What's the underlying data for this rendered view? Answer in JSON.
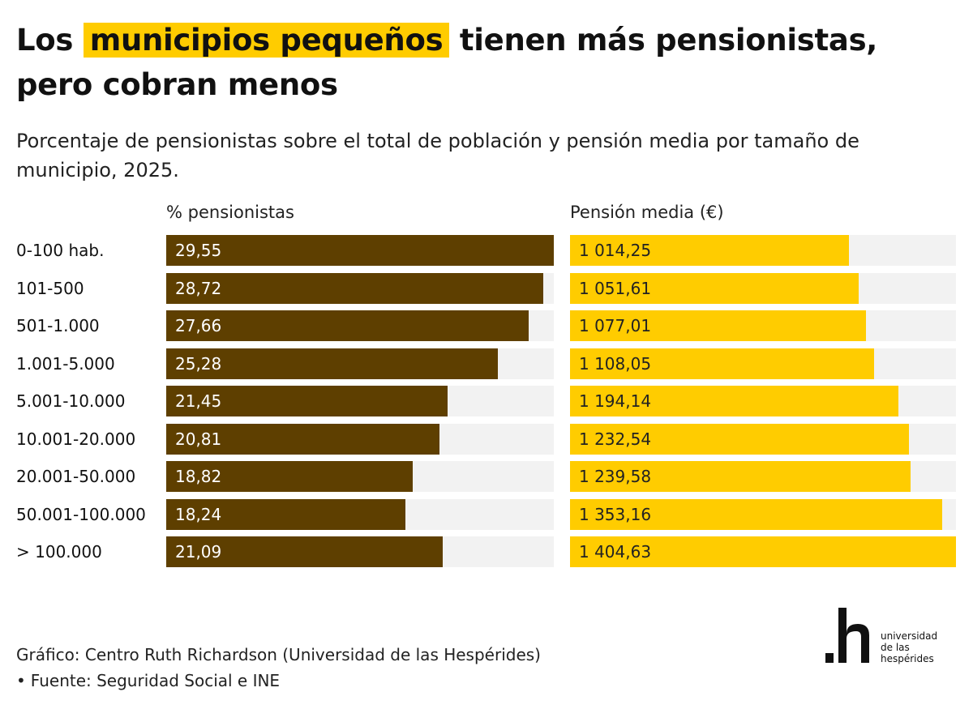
{
  "title": {
    "pre": "Los ",
    "highlight": "municipios pequeños",
    "post": " tienen más pensionistas, pero cobran menos"
  },
  "subtitle": "Porcentaje de pensionistas sobre el total de población y pensión media por tamaño de municipio, 2025.",
  "colors": {
    "brown": "#5e3f00",
    "yellow": "#ffcc00",
    "track": "#f2f2f2"
  },
  "chart_data": [
    {
      "type": "bar",
      "orientation": "horizontal",
      "title": "% pensionistas",
      "categories": [
        "0-100 hab.",
        "101-500",
        "501-1.000",
        "1.001-5.000",
        "5.001-10.000",
        "10.001-20.000",
        "20.001-50.000",
        "50.001-100.000",
        "> 100.000"
      ],
      "values": [
        29.55,
        28.72,
        27.66,
        25.28,
        21.45,
        20.81,
        18.82,
        18.24,
        21.09
      ],
      "value_labels": [
        "29,55",
        "28,72",
        "27,66",
        "25,28",
        "21,45",
        "20,81",
        "18,82",
        "18,24",
        "21,09"
      ],
      "xlim": [
        0,
        29.55
      ],
      "color": "#5e3f00",
      "grid": false
    },
    {
      "type": "bar",
      "orientation": "horizontal",
      "title": "Pensión media (€)",
      "categories": [
        "0-100 hab.",
        "101-500",
        "501-1.000",
        "1.001-5.000",
        "5.001-10.000",
        "10.001-20.000",
        "20.001-50.000",
        "50.001-100.000",
        "> 100.000"
      ],
      "values": [
        1014.25,
        1051.61,
        1077.01,
        1108.05,
        1194.14,
        1232.54,
        1239.58,
        1353.16,
        1404.63
      ],
      "value_labels": [
        "1 014,25",
        "1 051,61",
        "1 077,01",
        "1 108,05",
        "1 194,14",
        "1 232,54",
        "1 239,58",
        "1 353,16",
        "1 404,63"
      ],
      "xlim": [
        0,
        1404.63
      ],
      "color": "#ffcc00",
      "grid": false
    }
  ],
  "credit": {
    "line1": "Gráfico: Centro Ruth Richardson (Universidad de las Hespérides)",
    "bullet": "•",
    "line2": "Fuente: Seguridad Social e INE"
  },
  "logo": {
    "mark_icon": "h-logo-icon",
    "text_lines": [
      "universidad",
      "de las",
      "hespérides"
    ]
  }
}
